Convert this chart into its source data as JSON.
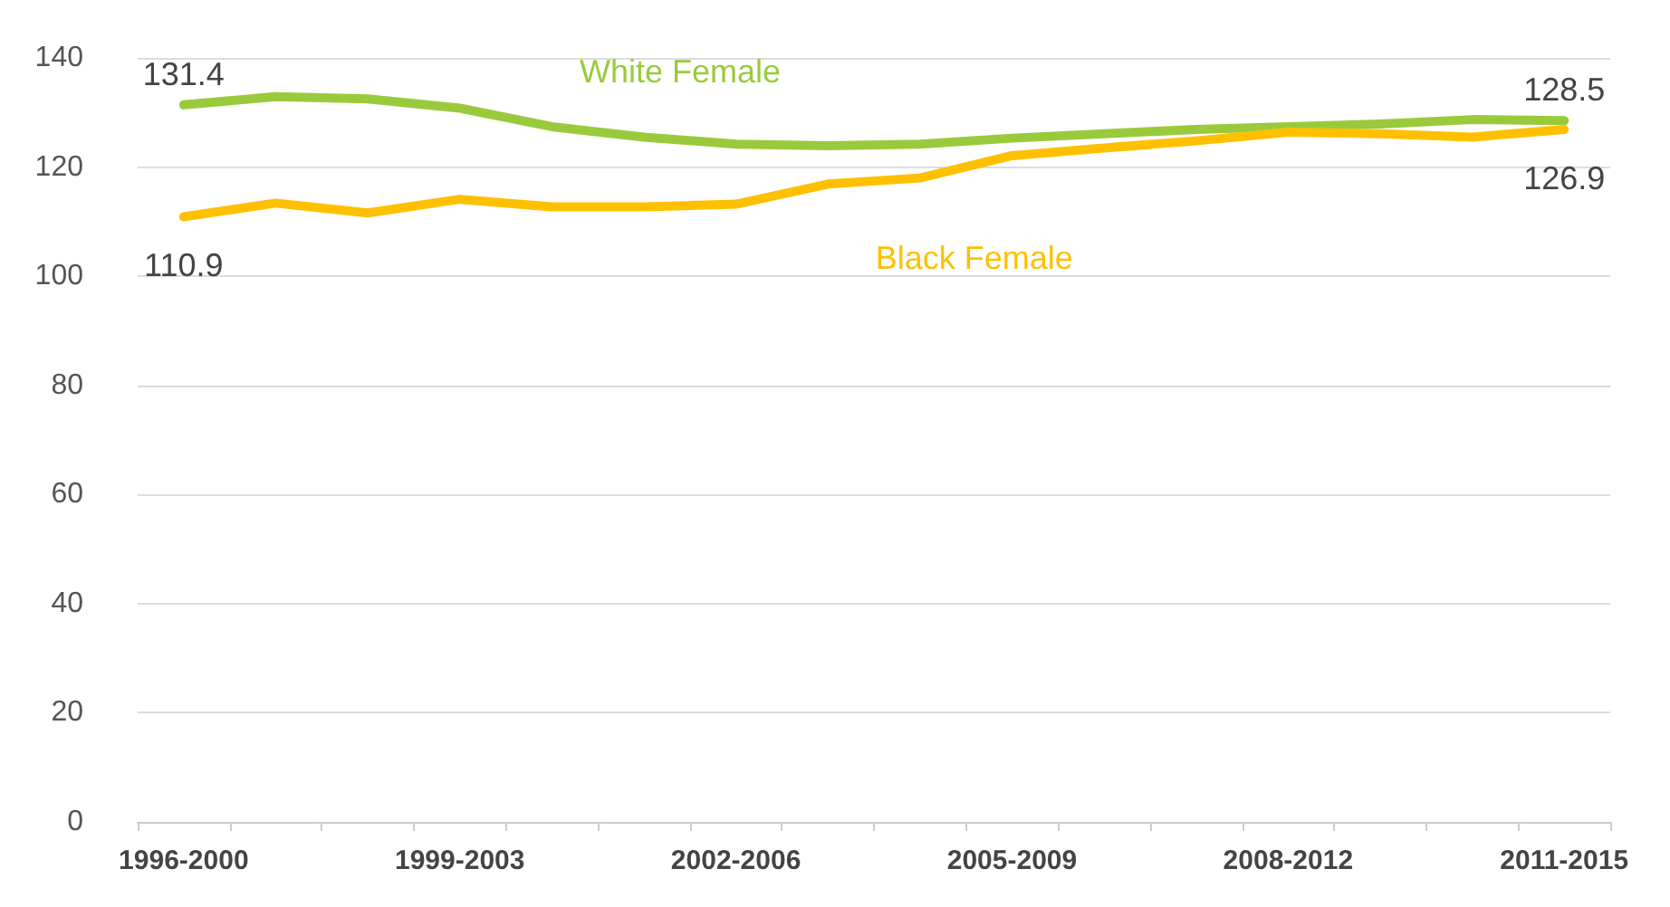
{
  "chart_data": {
    "type": "line",
    "categories": [
      "1996-2000",
      null,
      null,
      "1999-2003",
      null,
      null,
      "2002-2006",
      null,
      null,
      "2005-2009",
      null,
      null,
      "2008-2012",
      null,
      null,
      "2011-2015"
    ],
    "series": [
      {
        "name": "White Female",
        "color": "#9aca3c",
        "values": [
          131.4,
          132.9,
          132.5,
          130.8,
          127.4,
          125.5,
          124.2,
          123.9,
          124.2,
          125.3,
          126.1,
          126.9,
          127.4,
          127.9,
          128.7,
          128.5
        ],
        "value_labels": [
          "131.4",
          null,
          null,
          null,
          null,
          null,
          null,
          null,
          null,
          null,
          null,
          null,
          null,
          null,
          null,
          "128.5"
        ]
      },
      {
        "name": "Black Female",
        "color": "#ffc000",
        "values": [
          110.9,
          113.4,
          111.6,
          114.1,
          112.7,
          112.7,
          113.2,
          116.9,
          118.0,
          122.1,
          123.5,
          124.8,
          126.4,
          126.1,
          125.5,
          126.9
        ],
        "value_labels": [
          "110.9",
          null,
          null,
          null,
          null,
          null,
          null,
          null,
          null,
          null,
          null,
          null,
          null,
          null,
          null,
          "126.9"
        ]
      }
    ],
    "ylim": [
      0,
      140
    ],
    "yticks": [
      0,
      20,
      40,
      60,
      80,
      100,
      120,
      140
    ],
    "grid": "y",
    "legend": false,
    "marker": "none",
    "line_style": "solid"
  }
}
